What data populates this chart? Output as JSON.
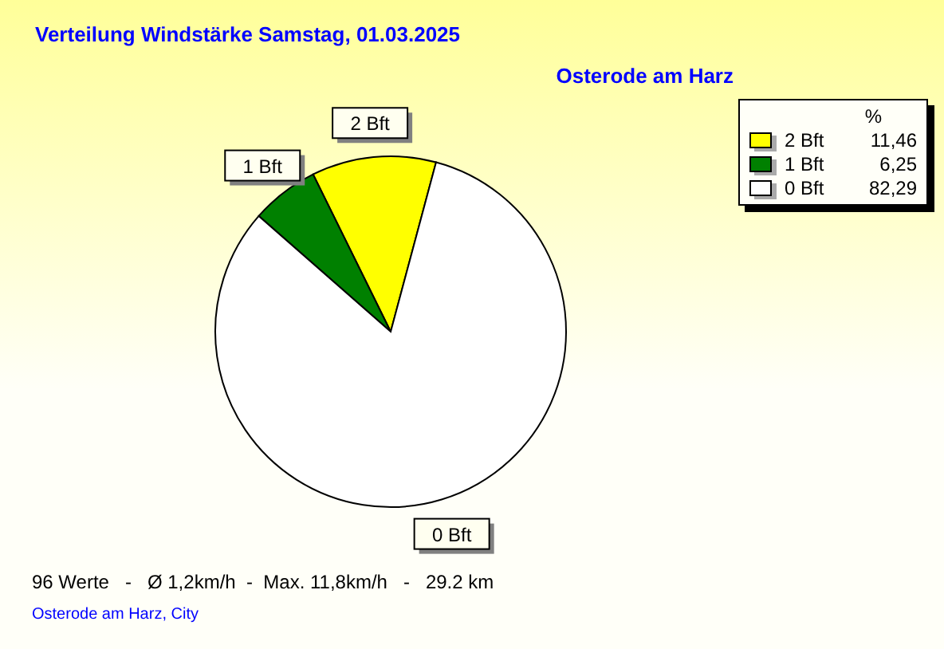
{
  "chart_data": {
    "type": "pie",
    "title": "Verteilung Windstärke  Samstag, 01.03.2025",
    "subtitle": "Osterode am Harz",
    "categories": [
      "2 Bft",
      "1 Bft",
      "0 Bft"
    ],
    "values": [
      11.46,
      6.25,
      82.29
    ],
    "colors": [
      "#ffff00",
      "#008000",
      "#ffffff"
    ],
    "value_labels": [
      "11,46",
      "6,25",
      "82,29"
    ],
    "legend_title": "%",
    "legend": "top right",
    "annotations": [
      "96 Werte   -   Ø 1,2km/h  -  Max. 11,8km/h   -   29.2 km",
      "Osterode am Harz, City"
    ]
  }
}
